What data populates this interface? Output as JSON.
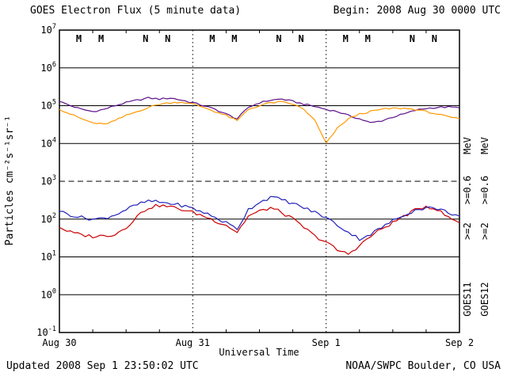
{
  "header": {
    "title": "GOES Electron Flux (5 minute data)",
    "begin_label": "Begin: 2008 Aug 30 0000 UTC"
  },
  "footer": {
    "updated": "Updated 2008 Sep 1 23:50:02 UTC",
    "credit": "NOAA/SWPC Boulder, CO USA"
  },
  "axes": {
    "y_label": "Particles cm⁻²s⁻¹sr⁻¹",
    "x_label": "Universal Time",
    "y_exponents": [
      7,
      6,
      5,
      4,
      3,
      2,
      1,
      0,
      -1
    ],
    "x_ticks": [
      {
        "hour": 0,
        "label": "Aug 30"
      },
      {
        "hour": 24,
        "label": "Aug 31"
      },
      {
        "hour": 48,
        "label": "Sep 1"
      },
      {
        "hour": 72,
        "label": "Sep 2"
      }
    ],
    "threshold_exponent": 3,
    "day_line_hours": [
      24,
      48
    ]
  },
  "right_labels": {
    "col1": {
      "sat": "GOES11",
      "e2": ">=2",
      "e06": ">=0.6",
      "mev": "MeV"
    },
    "col2": {
      "sat": "GOES12",
      "e2": ">=2",
      "e06": ">=0.6",
      "mev": "MeV"
    }
  },
  "colors": {
    "goes11_gt2": "#cc0000",
    "goes12_gt2": "#2222bb",
    "goes11_gt06": "#5c0f8b",
    "goes12_gt06": "#ff9900",
    "axis": "#000000",
    "background": "#ffffff"
  },
  "chart_data": {
    "type": "line",
    "title": "GOES Electron Flux (5 minute data)",
    "xlabel": "Universal Time",
    "ylabel": "Particles cm^-2 s^-1 sr^-1",
    "y_scale": "log",
    "ylim_exponents": [
      -1,
      7
    ],
    "x_unit": "hours since 2008-08-30 00:00 UTC",
    "x": [
      0,
      2,
      4,
      6,
      8,
      10,
      12,
      14,
      16,
      18,
      20,
      22,
      24,
      26,
      28,
      30,
      32,
      34,
      36,
      38,
      40,
      42,
      44,
      46,
      48,
      50,
      52,
      54,
      56,
      58,
      60,
      62,
      64,
      66,
      68,
      70,
      72
    ],
    "series": [
      {
        "name": "GOES11 >=0.6 MeV",
        "color": "#5c0f8b",
        "values": [
          130000,
          100000,
          80000,
          70000,
          80000,
          100000,
          120000,
          140000,
          160000,
          150000,
          160000,
          140000,
          120000,
          100000,
          80000,
          60000,
          45000,
          90000,
          120000,
          140000,
          150000,
          130000,
          110000,
          95000,
          80000,
          70000,
          55000,
          45000,
          35000,
          40000,
          50000,
          60000,
          75000,
          85000,
          90000,
          92000,
          88000
        ]
      },
      {
        "name": "GOES12 >=0.6 MeV",
        "color": "#ff9900",
        "values": [
          80000,
          60000,
          45000,
          35000,
          32000,
          40000,
          55000,
          70000,
          90000,
          110000,
          120000,
          125000,
          110000,
          90000,
          70000,
          55000,
          40000,
          80000,
          100000,
          120000,
          125000,
          110000,
          80000,
          40000,
          10000,
          25000,
          45000,
          60000,
          70000,
          80000,
          85000,
          85000,
          80000,
          70000,
          60000,
          50000,
          45000
        ]
      },
      {
        "name": "GOES11 >=2 MeV",
        "color": "#cc0000",
        "values": [
          60,
          45,
          38,
          35,
          36,
          40,
          60,
          120,
          200,
          230,
          210,
          180,
          150,
          120,
          90,
          70,
          45,
          120,
          160,
          200,
          150,
          100,
          60,
          35,
          25,
          15,
          12,
          20,
          35,
          55,
          80,
          120,
          170,
          220,
          180,
          110,
          80
        ]
      },
      {
        "name": "GOES12 >=2 MeV",
        "color": "#2222bb",
        "values": [
          160,
          130,
          110,
          100,
          105,
          130,
          180,
          240,
          300,
          280,
          260,
          230,
          190,
          150,
          110,
          80,
          55,
          180,
          280,
          380,
          330,
          260,
          200,
          150,
          110,
          70,
          45,
          30,
          40,
          60,
          90,
          130,
          170,
          200,
          190,
          150,
          120
        ]
      }
    ],
    "markers": [
      {
        "hour": 3.5,
        "letter": "M",
        "sat": "GOES11"
      },
      {
        "hour": 7.5,
        "letter": "M",
        "sat": "GOES12"
      },
      {
        "hour": 15.5,
        "letter": "N",
        "sat": "GOES11"
      },
      {
        "hour": 19.5,
        "letter": "N",
        "sat": "GOES12"
      },
      {
        "hour": 27.5,
        "letter": "M",
        "sat": "GOES11"
      },
      {
        "hour": 31.5,
        "letter": "M",
        "sat": "GOES12"
      },
      {
        "hour": 39.5,
        "letter": "N",
        "sat": "GOES11"
      },
      {
        "hour": 43.5,
        "letter": "N",
        "sat": "GOES12"
      },
      {
        "hour": 51.5,
        "letter": "M",
        "sat": "GOES11"
      },
      {
        "hour": 55.5,
        "letter": "M",
        "sat": "GOES12"
      },
      {
        "hour": 63.5,
        "letter": "N",
        "sat": "GOES11"
      },
      {
        "hour": 67.5,
        "letter": "N",
        "sat": "GOES12"
      }
    ]
  }
}
